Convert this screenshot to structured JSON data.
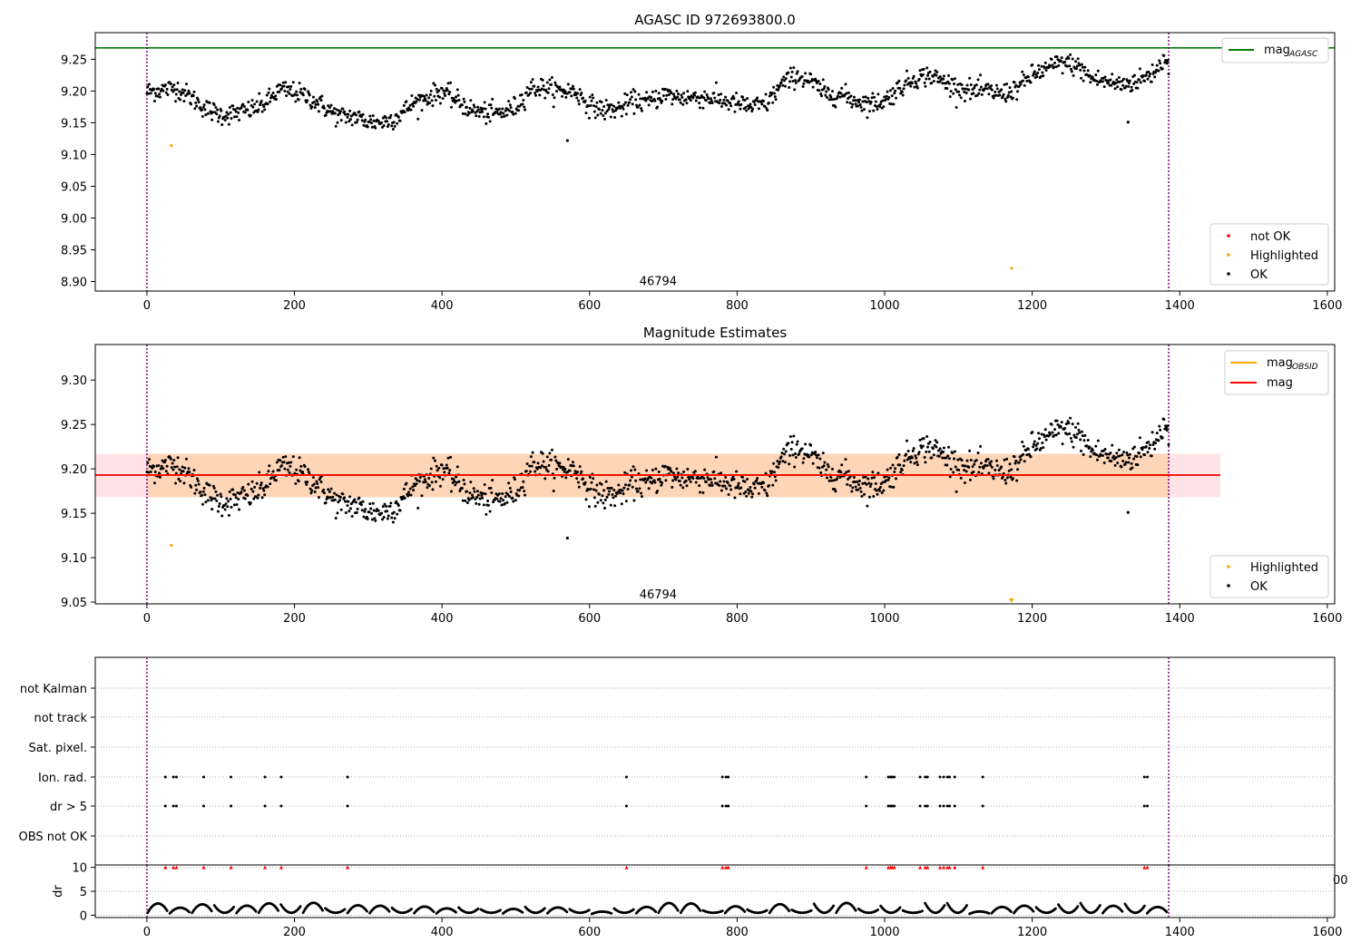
{
  "chart_data": [
    {
      "type": "scatter",
      "title": "AGASC ID 972693800.0",
      "xlim": [
        -70,
        1610
      ],
      "ylim": [
        8.885,
        9.292
      ],
      "xticks": [
        0,
        200,
        400,
        600,
        800,
        1000,
        1200,
        1400,
        1600
      ],
      "yticks": [
        "8.90",
        "8.95",
        "9.00",
        "9.05",
        "9.10",
        "9.15",
        "9.20",
        "9.25"
      ],
      "reference_lines": {
        "mag_agasc": 9.268,
        "vlines": [
          0,
          1385
        ]
      },
      "annotation": {
        "text": "46794",
        "x": 693,
        "y": 8.9
      },
      "legend_top": [
        {
          "label": "mag",
          "subscript": "AGASC",
          "color": "#008000"
        }
      ],
      "legend_bottom": [
        {
          "label": "not OK",
          "color": "#ff0000"
        },
        {
          "label": "Highlighted",
          "color": "#ffa500"
        },
        {
          "label": "OK",
          "color": "#000000"
        }
      ],
      "highlighted_points": [
        {
          "x": 33,
          "y": 9.114
        },
        {
          "x": 1172,
          "y": 8.921
        }
      ],
      "outlier_points": [
        {
          "x": 570,
          "y": 9.122
        },
        {
          "x": 1330,
          "y": 9.151
        }
      ],
      "ok_trend": [
        [
          0,
          9.199
        ],
        [
          40,
          9.205
        ],
        [
          60,
          9.19
        ],
        [
          80,
          9.172
        ],
        [
          100,
          9.163
        ],
        [
          120,
          9.165
        ],
        [
          140,
          9.17
        ],
        [
          160,
          9.18
        ],
        [
          180,
          9.202
        ],
        [
          200,
          9.198
        ],
        [
          220,
          9.19
        ],
        [
          240,
          9.175
        ],
        [
          260,
          9.16
        ],
        [
          280,
          9.16
        ],
        [
          300,
          9.152
        ],
        [
          320,
          9.151
        ],
        [
          340,
          9.16
        ],
        [
          360,
          9.18
        ],
        [
          380,
          9.19
        ],
        [
          400,
          9.2
        ],
        [
          420,
          9.185
        ],
        [
          440,
          9.17
        ],
        [
          460,
          9.165
        ],
        [
          480,
          9.165
        ],
        [
          500,
          9.175
        ],
        [
          520,
          9.205
        ],
        [
          540,
          9.205
        ],
        [
          560,
          9.2
        ],
        [
          580,
          9.2
        ],
        [
          600,
          9.178
        ],
        [
          620,
          9.17
        ],
        [
          640,
          9.172
        ],
        [
          660,
          9.185
        ],
        [
          680,
          9.182
        ],
        [
          700,
          9.195
        ],
        [
          720,
          9.19
        ],
        [
          740,
          9.19
        ],
        [
          760,
          9.19
        ],
        [
          780,
          9.185
        ],
        [
          800,
          9.18
        ],
        [
          820,
          9.175
        ],
        [
          840,
          9.18
        ],
        [
          860,
          9.21
        ],
        [
          880,
          9.225
        ],
        [
          900,
          9.215
        ],
        [
          920,
          9.195
        ],
        [
          940,
          9.195
        ],
        [
          960,
          9.185
        ],
        [
          980,
          9.18
        ],
        [
          1000,
          9.185
        ],
        [
          1020,
          9.205
        ],
        [
          1040,
          9.22
        ],
        [
          1060,
          9.225
        ],
        [
          1080,
          9.215
        ],
        [
          1100,
          9.205
        ],
        [
          1120,
          9.2
        ],
        [
          1140,
          9.2
        ],
        [
          1160,
          9.195
        ],
        [
          1180,
          9.205
        ],
        [
          1200,
          9.225
        ],
        [
          1220,
          9.235
        ],
        [
          1240,
          9.245
        ],
        [
          1260,
          9.24
        ],
        [
          1280,
          9.22
        ],
        [
          1300,
          9.215
        ],
        [
          1320,
          9.21
        ],
        [
          1340,
          9.215
        ],
        [
          1360,
          9.225
        ],
        [
          1380,
          9.25
        ]
      ],
      "ok_scatter_sd": 0.008
    },
    {
      "type": "scatter",
      "title": "Magnitude Estimates",
      "xlim": [
        -70,
        1610
      ],
      "ylim": [
        9.048,
        9.34
      ],
      "xticks": [
        0,
        200,
        400,
        600,
        800,
        1000,
        1200,
        1400,
        1600
      ],
      "yticks": [
        "9.05",
        "9.10",
        "9.15",
        "9.20",
        "9.25",
        "9.30"
      ],
      "reference_lines": {
        "mag": 9.193,
        "band": [
          9.168,
          9.217
        ],
        "band_x": [
          -70,
          1455
        ],
        "vlines": [
          0,
          1385
        ]
      },
      "annotation": {
        "text": "46794",
        "x": 693,
        "y": 9.058
      },
      "legend_top": [
        {
          "label": "mag",
          "subscript": "OBSID",
          "color": "#ffa500"
        },
        {
          "label": "mag",
          "subscript": "",
          "color": "#ff0000"
        }
      ],
      "legend_bottom": [
        {
          "label": "Highlighted",
          "color": "#ffa500"
        },
        {
          "label": "OK",
          "color": "#000000"
        }
      ],
      "highlighted_points": [
        {
          "x": 33,
          "y": 9.114
        }
      ],
      "below_range_marker": {
        "x": 1172
      },
      "outlier_points": [
        {
          "x": 570,
          "y": 9.122
        },
        {
          "x": 1330,
          "y": 9.151
        }
      ]
    },
    {
      "type": "scatter",
      "categories": [
        "not Kalman",
        "not track",
        "Sat. pixel.",
        "Ion. rad.",
        "dr > 5",
        "OBS not OK"
      ],
      "flag_rows": {
        "Ion. rad.": true,
        "dr > 5": true
      },
      "flag_x": [
        25,
        36,
        40,
        77,
        114,
        160,
        182,
        272,
        650,
        780,
        785,
        788,
        975,
        1005,
        1008,
        1010,
        1013,
        1048,
        1055,
        1058,
        1075,
        1080,
        1085,
        1088,
        1095,
        1133,
        1352,
        1356
      ],
      "xlim": [
        -70,
        1610
      ],
      "xticks": [
        0,
        200,
        400,
        600,
        800,
        1000,
        1200,
        1400,
        1600
      ],
      "vlines": [
        0,
        1385
      ],
      "dr_panel": {
        "ylabel": "dr",
        "ylim": [
          -0.5,
          10.5
        ],
        "yticks": [
          0,
          5,
          10
        ],
        "arcs": 46,
        "arc_amplitude": [
          0.5,
          2.4
        ]
      },
      "clipped_tick_label": "00"
    }
  ]
}
